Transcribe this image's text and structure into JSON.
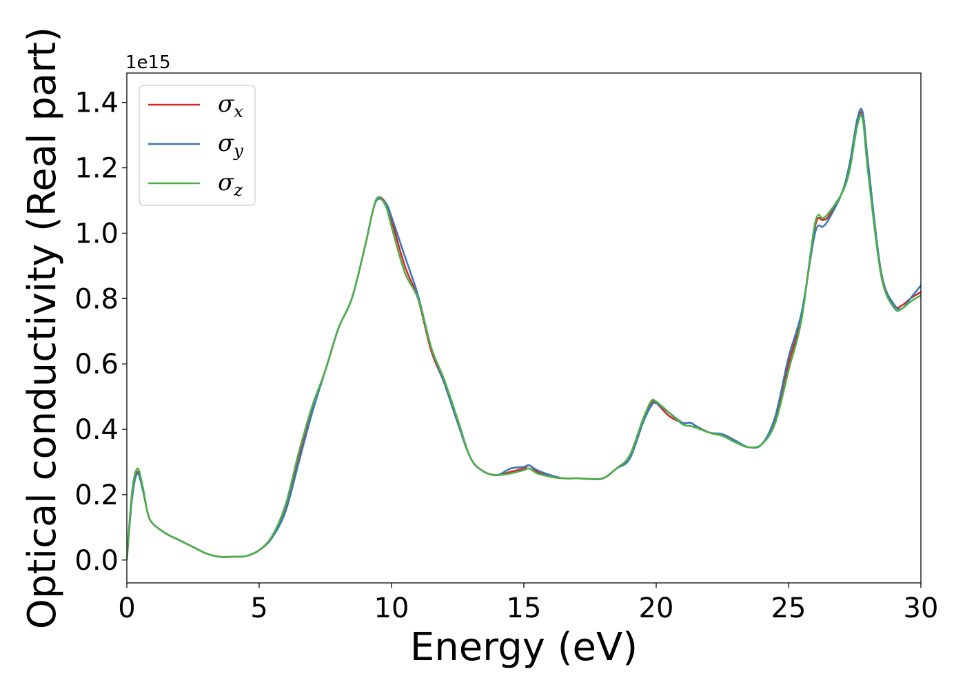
{
  "chart_data": {
    "type": "line",
    "xlabel": "Energy (eV)",
    "ylabel": "Optical conductivity (Real part)",
    "y_offset_label": "1e15",
    "xlim": [
      0,
      30
    ],
    "ylim": [
      -0.07,
      1.49
    ],
    "x_ticks": [
      0,
      5,
      10,
      15,
      20,
      25,
      30
    ],
    "x_tick_labels": [
      "0",
      "5",
      "10",
      "15",
      "20",
      "25",
      "30"
    ],
    "y_ticks": [
      0.0,
      0.2,
      0.4,
      0.6,
      0.8,
      1.0,
      1.2,
      1.4
    ],
    "y_tick_labels": [
      "0.0",
      "0.2",
      "0.4",
      "0.6",
      "0.8",
      "1.0",
      "1.2",
      "1.4"
    ],
    "grid": false,
    "legend_position": "top-left",
    "series": [
      {
        "name": "σx",
        "symbol": "σ",
        "subscript": "x",
        "color": "#d62728",
        "x": [
          0,
          0.2,
          0.4,
          0.6,
          0.8,
          1.0,
          1.5,
          2.0,
          2.5,
          3.0,
          3.5,
          4.0,
          4.5,
          5.0,
          5.5,
          6.0,
          6.5,
          7.0,
          7.5,
          8.0,
          8.5,
          9.0,
          9.3,
          9.5,
          9.8,
          10.0,
          10.5,
          11.0,
          11.5,
          12.0,
          12.5,
          13.0,
          13.5,
          14.0,
          14.5,
          15.0,
          15.2,
          15.5,
          16.0,
          16.5,
          17.0,
          17.5,
          18.0,
          18.5,
          19.0,
          19.5,
          19.8,
          20.0,
          20.5,
          21.0,
          21.3,
          21.5,
          22.0,
          22.5,
          23.0,
          23.5,
          24.0,
          24.5,
          25.0,
          25.5,
          26.0,
          26.3,
          26.5,
          27.0,
          27.3,
          27.6,
          27.8,
          28.0,
          28.5,
          29.0,
          29.3,
          29.6,
          30.0
        ],
        "y": [
          0.0,
          0.2,
          0.27,
          0.22,
          0.14,
          0.11,
          0.08,
          0.06,
          0.04,
          0.02,
          0.01,
          0.01,
          0.012,
          0.03,
          0.07,
          0.16,
          0.32,
          0.46,
          0.58,
          0.71,
          0.8,
          0.96,
          1.07,
          1.11,
          1.09,
          1.04,
          0.9,
          0.8,
          0.64,
          0.54,
          0.42,
          0.31,
          0.27,
          0.26,
          0.27,
          0.28,
          0.29,
          0.27,
          0.255,
          0.25,
          0.25,
          0.248,
          0.25,
          0.28,
          0.32,
          0.43,
          0.48,
          0.48,
          0.44,
          0.42,
          0.42,
          0.41,
          0.39,
          0.38,
          0.36,
          0.345,
          0.355,
          0.43,
          0.6,
          0.75,
          1.02,
          1.04,
          1.05,
          1.12,
          1.2,
          1.34,
          1.36,
          1.2,
          0.88,
          0.78,
          0.78,
          0.8,
          0.82
        ]
      },
      {
        "name": "σy",
        "symbol": "σ",
        "subscript": "y",
        "color": "#3a78b5",
        "x": [
          0,
          0.2,
          0.4,
          0.6,
          0.8,
          1.0,
          1.5,
          2.0,
          2.5,
          3.0,
          3.5,
          4.0,
          4.5,
          5.0,
          5.5,
          6.0,
          6.5,
          7.0,
          7.5,
          8.0,
          8.5,
          9.0,
          9.3,
          9.5,
          9.8,
          10.0,
          10.5,
          11.0,
          11.5,
          12.0,
          12.5,
          13.0,
          13.5,
          14.0,
          14.5,
          15.0,
          15.2,
          15.5,
          16.0,
          16.5,
          17.0,
          17.5,
          18.0,
          18.5,
          19.0,
          19.5,
          19.8,
          20.0,
          20.5,
          21.0,
          21.3,
          21.5,
          22.0,
          22.5,
          23.0,
          23.5,
          24.0,
          24.5,
          25.0,
          25.5,
          26.0,
          26.3,
          26.5,
          27.0,
          27.3,
          27.6,
          27.8,
          28.0,
          28.5,
          29.0,
          29.3,
          29.6,
          30.0
        ],
        "y": [
          0.0,
          0.19,
          0.265,
          0.215,
          0.14,
          0.11,
          0.08,
          0.06,
          0.04,
          0.02,
          0.01,
          0.01,
          0.012,
          0.03,
          0.07,
          0.15,
          0.3,
          0.45,
          0.58,
          0.71,
          0.8,
          0.96,
          1.07,
          1.105,
          1.09,
          1.05,
          0.93,
          0.81,
          0.65,
          0.54,
          0.42,
          0.31,
          0.27,
          0.26,
          0.28,
          0.285,
          0.29,
          0.275,
          0.26,
          0.25,
          0.25,
          0.248,
          0.25,
          0.28,
          0.31,
          0.42,
          0.47,
          0.48,
          0.45,
          0.42,
          0.42,
          0.41,
          0.39,
          0.385,
          0.365,
          0.345,
          0.355,
          0.44,
          0.62,
          0.76,
          1.0,
          1.02,
          1.04,
          1.12,
          1.21,
          1.35,
          1.37,
          1.22,
          0.88,
          0.78,
          0.77,
          0.8,
          0.84
        ]
      },
      {
        "name": "σz",
        "symbol": "σ",
        "subscript": "z",
        "color": "#4daf4a",
        "x": [
          0,
          0.2,
          0.4,
          0.6,
          0.8,
          1.0,
          1.5,
          2.0,
          2.5,
          3.0,
          3.5,
          4.0,
          4.5,
          5.0,
          5.5,
          6.0,
          6.5,
          7.0,
          7.5,
          8.0,
          8.5,
          9.0,
          9.3,
          9.5,
          9.8,
          10.0,
          10.5,
          11.0,
          11.5,
          12.0,
          12.5,
          13.0,
          13.5,
          14.0,
          14.5,
          15.0,
          15.2,
          15.5,
          16.0,
          16.5,
          17.0,
          17.5,
          18.0,
          18.5,
          19.0,
          19.5,
          19.8,
          20.0,
          20.5,
          21.0,
          21.3,
          21.5,
          22.0,
          22.5,
          23.0,
          23.5,
          24.0,
          24.5,
          25.0,
          25.5,
          26.0,
          26.3,
          26.5,
          27.0,
          27.3,
          27.6,
          27.8,
          28.0,
          28.5,
          29.0,
          29.3,
          29.6,
          30.0
        ],
        "y": [
          0.0,
          0.21,
          0.28,
          0.225,
          0.14,
          0.11,
          0.08,
          0.06,
          0.04,
          0.02,
          0.01,
          0.01,
          0.012,
          0.03,
          0.075,
          0.17,
          0.33,
          0.47,
          0.58,
          0.71,
          0.8,
          0.96,
          1.07,
          1.11,
          1.08,
          1.02,
          0.88,
          0.8,
          0.65,
          0.55,
          0.43,
          0.31,
          0.27,
          0.26,
          0.265,
          0.275,
          0.28,
          0.265,
          0.255,
          0.25,
          0.25,
          0.248,
          0.25,
          0.28,
          0.32,
          0.43,
          0.485,
          0.485,
          0.45,
          0.415,
          0.41,
          0.405,
          0.39,
          0.38,
          0.36,
          0.345,
          0.355,
          0.42,
          0.58,
          0.74,
          1.03,
          1.045,
          1.06,
          1.12,
          1.19,
          1.33,
          1.35,
          1.19,
          0.87,
          0.77,
          0.77,
          0.79,
          0.81
        ]
      }
    ]
  }
}
